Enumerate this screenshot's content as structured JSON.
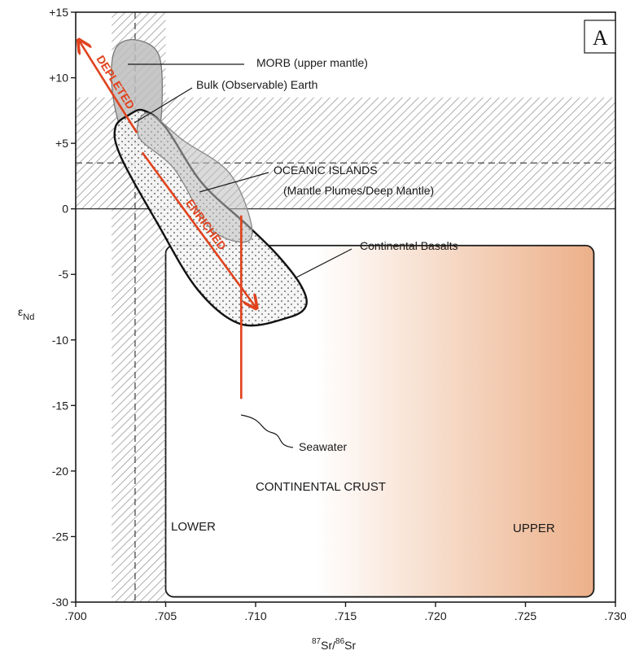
{
  "chart_data": {
    "type": "scatter",
    "panel_label": "A",
    "xlabel": {
      "sup": "87",
      "mid": "Sr/",
      "sup2": "86",
      "end": "Sr"
    },
    "ylabel": {
      "main": "ε",
      "sub": "Nd"
    },
    "xlim": [
      0.7,
      0.73
    ],
    "ylim": [
      -30,
      15
    ],
    "x_ticks": [
      {
        "value": 0.7,
        "label": ".700"
      },
      {
        "value": 0.705,
        "label": ".705"
      },
      {
        "value": 0.71,
        "label": ".710"
      },
      {
        "value": 0.715,
        "label": ".715"
      },
      {
        "value": 0.72,
        "label": ".720"
      },
      {
        "value": 0.725,
        "label": ".725"
      },
      {
        "value": 0.73,
        "label": ".730"
      }
    ],
    "y_ticks": [
      {
        "value": 15,
        "label": "+15"
      },
      {
        "value": 10,
        "label": "+10"
      },
      {
        "value": 5,
        "label": "+5"
      },
      {
        "value": 0,
        "label": "0"
      },
      {
        "value": -5,
        "label": "-5"
      },
      {
        "value": -10,
        "label": "-10"
      },
      {
        "value": -15,
        "label": "-15"
      },
      {
        "value": -20,
        "label": "-20"
      },
      {
        "value": -25,
        "label": "-25"
      },
      {
        "value": -30,
        "label": "-30"
      }
    ],
    "bulk_earth": {
      "sr": 0.7033,
      "nd": 3.5
    },
    "hatched_bands": {
      "vertical_x": [
        0.702,
        0.705
      ],
      "horizontal_y": [
        0,
        8.5
      ]
    },
    "fields": {
      "morb": {
        "label": "MORB (upper mantle)",
        "outline": [
          [
            0.7033,
            12.9
          ],
          [
            0.7046,
            11.8
          ],
          [
            0.7048,
            8.2
          ],
          [
            0.7045,
            5.5
          ],
          [
            0.7035,
            5.0
          ],
          [
            0.7025,
            6.2
          ],
          [
            0.702,
            9.5
          ],
          [
            0.7022,
            12.2
          ]
        ]
      },
      "oceanic_islands": {
        "label_1": "OCEANIC ISLANDS",
        "label_2": "(Mantle Plumes/Deep Mantle)",
        "outline": [
          [
            0.704,
            7.3
          ],
          [
            0.706,
            5.2
          ],
          [
            0.7085,
            2.8
          ],
          [
            0.7097,
            -0.8
          ],
          [
            0.7095,
            -2.5
          ],
          [
            0.7075,
            -1.5
          ],
          [
            0.7055,
            3.0
          ],
          [
            0.7035,
            5.5
          ]
        ]
      },
      "continental_basalts": {
        "label": "Continental Basalts",
        "outline": [
          [
            0.7038,
            7.5
          ],
          [
            0.705,
            6.2
          ],
          [
            0.707,
            2.0
          ],
          [
            0.7095,
            -1.2
          ],
          [
            0.7112,
            -3.5
          ],
          [
            0.7125,
            -5.8
          ],
          [
            0.7128,
            -7.4
          ],
          [
            0.7118,
            -8.3
          ],
          [
            0.7092,
            -8.8
          ],
          [
            0.7068,
            -6.2
          ],
          [
            0.7045,
            -1.0
          ],
          [
            0.7025,
            4.0
          ],
          [
            0.7022,
            6.2
          ],
          [
            0.703,
            7.2
          ]
        ]
      },
      "continental_crust": {
        "label": "CONTINENTAL CRUST",
        "lower_label": "LOWER",
        "upper_label": "UPPER",
        "x_range": [
          0.705,
          0.7288
        ],
        "y_range": [
          -29.6,
          -2.8
        ],
        "gradient_colors": [
          "#ffffff",
          "#ecb089"
        ]
      }
    },
    "trends": {
      "depleted": {
        "label": "DEPLETED",
        "from": [
          0.7034,
          5.8
        ],
        "to": [
          0.7002,
          12.8
        ]
      },
      "enriched": {
        "label": "ENRICHED",
        "from": [
          0.7037,
          4.3
        ],
        "to": [
          0.71,
          -7.5
        ]
      },
      "seawater": {
        "label": "Seawater",
        "sr": 0.7092,
        "nd_top": -0.5,
        "nd_bottom": -14.5
      }
    },
    "annotations": {
      "bulk_earth_label": "Bulk (Observable) Earth"
    },
    "colors": {
      "red": "#e0431e",
      "grey_field": "#bdbdbd",
      "hatch": "#9a9a9a",
      "axis": "#1a1a1a"
    }
  }
}
